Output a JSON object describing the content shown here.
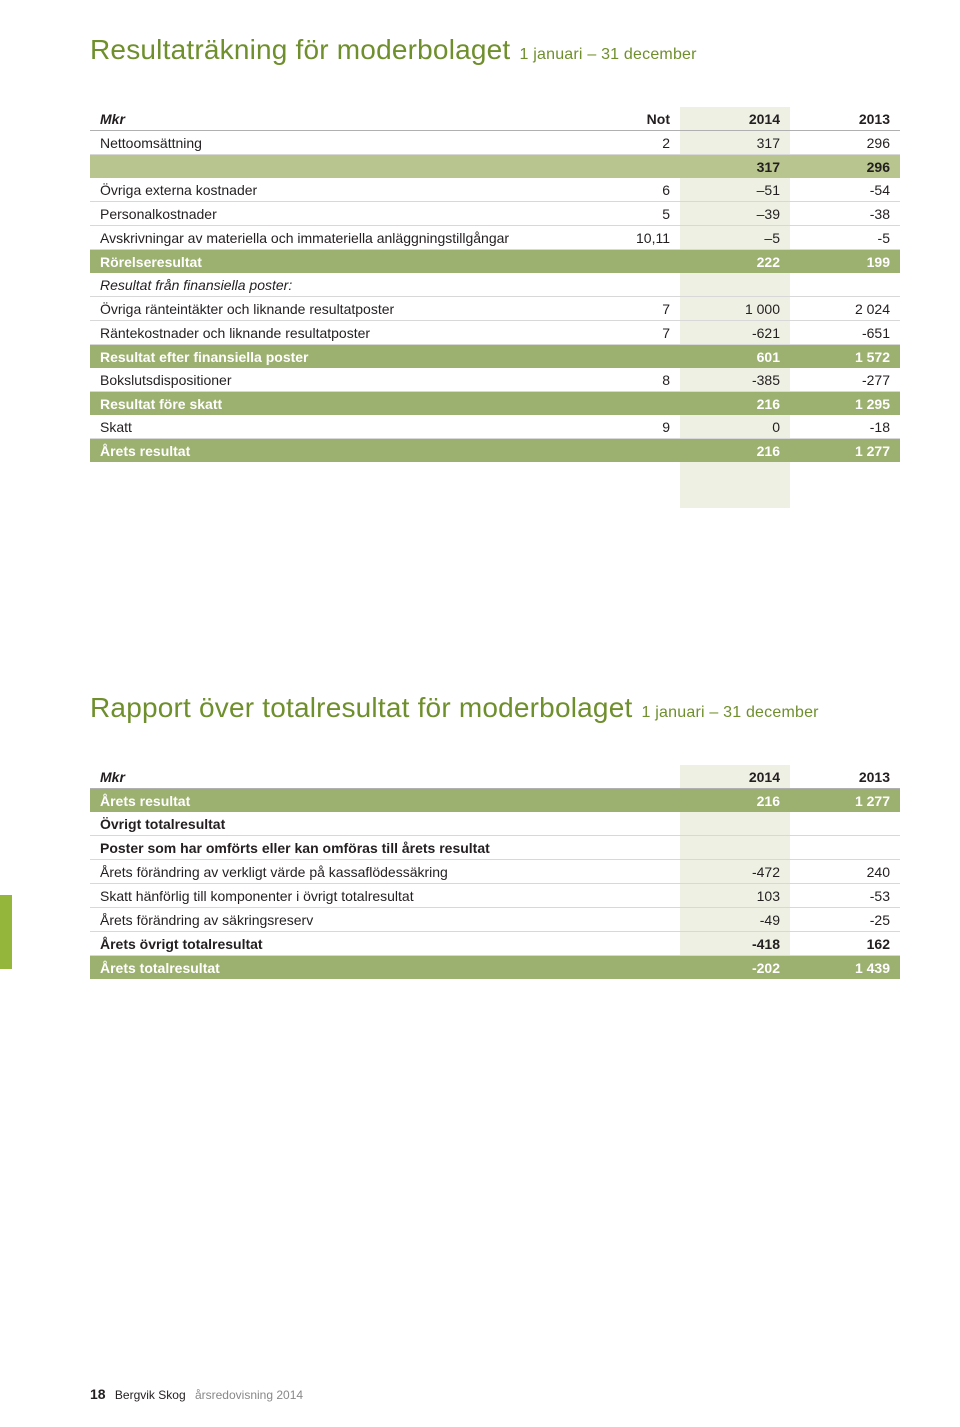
{
  "colors": {
    "heading": "#6f8f2d",
    "hl_row": "#9cb06f",
    "shade_col": "#eef0e3",
    "subtotal_row": "#b8c58e",
    "rule": "#b0b0b0"
  },
  "section1": {
    "title_main": "Resultaträkning för moderbolaget",
    "title_sub": "1 januari – 31 december",
    "columns": [
      "Mkr",
      "Not",
      "2014",
      "2013"
    ],
    "rows": [
      {
        "type": "plain",
        "label": "Nettoomsättning",
        "not": "2",
        "y1": "317",
        "y2": "296"
      },
      {
        "type": "subtotal",
        "label": "",
        "not": "",
        "y1": "317",
        "y2": "296"
      },
      {
        "type": "plain",
        "label": "Övriga externa kostnader",
        "not": "6",
        "y1": "–51",
        "y2": "-54"
      },
      {
        "type": "plain",
        "label": "Personalkostnader",
        "not": "5",
        "y1": "–39",
        "y2": "-38"
      },
      {
        "type": "plain",
        "label": "Avskrivningar av materiella och immateriella anläggningstillgångar",
        "not": "10,11",
        "y1": "–5",
        "y2": "-5"
      },
      {
        "type": "hl",
        "label": "Rörelseresultat",
        "not": "",
        "y1": "222",
        "y2": "199"
      },
      {
        "type": "italic",
        "label": "Resultat från finansiella poster:",
        "not": "",
        "y1": "",
        "y2": ""
      },
      {
        "type": "plain",
        "label": "Övriga ränteintäkter och liknande resultatposter",
        "not": "7",
        "y1": "1 000",
        "y2": "2 024"
      },
      {
        "type": "plain",
        "label": "Räntekostnader och liknande resultatposter",
        "not": "7",
        "y1": "-621",
        "y2": "-651"
      },
      {
        "type": "hl",
        "label": "Resultat efter finansiella poster",
        "not": "",
        "y1": "601",
        "y2": "1 572"
      },
      {
        "type": "plain",
        "label": "Bokslutsdispositioner",
        "not": "8",
        "y1": "-385",
        "y2": "-277"
      },
      {
        "type": "hl",
        "label": "Resultat före skatt",
        "not": "",
        "y1": "216",
        "y2": "1 295"
      },
      {
        "type": "plain",
        "label": "Skatt",
        "not": "9",
        "y1": "0",
        "y2": "-18"
      },
      {
        "type": "hl",
        "label": "Årets resultat",
        "not": "",
        "y1": "216",
        "y2": "1 277"
      }
    ],
    "trailing_shade_rows": 2
  },
  "section2": {
    "title_main": "Rapport över totalresultat för moderbolaget",
    "title_sub": "1 januari – 31 december",
    "columns": [
      "Mkr",
      "2014",
      "2013"
    ],
    "rows": [
      {
        "type": "hl",
        "label": "Årets resultat",
        "y1": "216",
        "y2": "1 277"
      },
      {
        "type": "bold",
        "label": "Övrigt totalresultat",
        "y1": "",
        "y2": ""
      },
      {
        "type": "bold",
        "label": "Poster som har omförts eller kan omföras till årets resultat",
        "y1": "",
        "y2": ""
      },
      {
        "type": "plain",
        "label": "Årets förändring av verkligt värde på kassaflödessäkring",
        "y1": "-472",
        "y2": "240"
      },
      {
        "type": "plain",
        "label": "Skatt hänförlig till komponenter i övrigt totalresultat",
        "y1": "103",
        "y2": "-53"
      },
      {
        "type": "plain",
        "label": "Årets förändring av säkringsreserv",
        "y1": "-49",
        "y2": "-25"
      },
      {
        "type": "bold",
        "label": "Årets övrigt totalresultat",
        "y1": "-418",
        "y2": "162"
      },
      {
        "type": "hl",
        "label": "Årets totalresultat",
        "y1": "-202",
        "y2": "1 439"
      }
    ]
  },
  "footer": {
    "page": "18",
    "company": "Bergvik Skog",
    "doc": "årsredovisning 2014"
  }
}
